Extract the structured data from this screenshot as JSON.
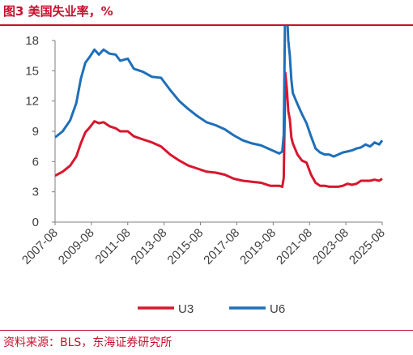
{
  "header": {
    "title": "图3  美国失业率，%"
  },
  "footer": {
    "source": "资料来源：BLS，东海证券研究所"
  },
  "chart_data": {
    "type": "line",
    "title": "美国失业率，%",
    "xlabel": "",
    "ylabel": "",
    "xlim": [
      "2007-08",
      "2025-08"
    ],
    "ylim": [
      0,
      18
    ],
    "yticks": [
      0,
      3,
      6,
      9,
      12,
      15,
      18
    ],
    "xticks": [
      "2007-08",
      "2009-08",
      "2011-08",
      "2013-08",
      "2015-08",
      "2017-08",
      "2019-08",
      "2021-08",
      "2023-08",
      "2025-08"
    ],
    "grid": false,
    "legend": "bottom",
    "series": [
      {
        "name": "U3",
        "color": "#d7172f",
        "points": [
          [
            "2007-08",
            4.6
          ],
          [
            "2008-01",
            5.0
          ],
          [
            "2008-06",
            5.6
          ],
          [
            "2008-10",
            6.5
          ],
          [
            "2009-01",
            7.8
          ],
          [
            "2009-04",
            8.9
          ],
          [
            "2009-07",
            9.4
          ],
          [
            "2009-10",
            10.0
          ],
          [
            "2010-01",
            9.8
          ],
          [
            "2010-04",
            9.9
          ],
          [
            "2010-08",
            9.5
          ],
          [
            "2010-12",
            9.3
          ],
          [
            "2011-03",
            9.0
          ],
          [
            "2011-08",
            9.0
          ],
          [
            "2011-12",
            8.5
          ],
          [
            "2012-06",
            8.2
          ],
          [
            "2012-12",
            7.9
          ],
          [
            "2013-06",
            7.5
          ],
          [
            "2013-12",
            6.7
          ],
          [
            "2014-06",
            6.1
          ],
          [
            "2014-12",
            5.6
          ],
          [
            "2015-06",
            5.3
          ],
          [
            "2015-12",
            5.0
          ],
          [
            "2016-06",
            4.9
          ],
          [
            "2016-12",
            4.7
          ],
          [
            "2017-06",
            4.3
          ],
          [
            "2017-12",
            4.1
          ],
          [
            "2018-06",
            4.0
          ],
          [
            "2018-12",
            3.9
          ],
          [
            "2019-06",
            3.6
          ],
          [
            "2019-12",
            3.6
          ],
          [
            "2020-02",
            3.5
          ],
          [
            "2020-03",
            4.4
          ],
          [
            "2020-04",
            14.8
          ],
          [
            "2020-05",
            13.2
          ],
          [
            "2020-06",
            11.0
          ],
          [
            "2020-07",
            10.2
          ],
          [
            "2020-08",
            8.4
          ],
          [
            "2020-09",
            7.8
          ],
          [
            "2020-12",
            6.7
          ],
          [
            "2021-03",
            6.1
          ],
          [
            "2021-06",
            5.9
          ],
          [
            "2021-09",
            4.7
          ],
          [
            "2021-12",
            3.9
          ],
          [
            "2022-03",
            3.6
          ],
          [
            "2022-06",
            3.6
          ],
          [
            "2022-09",
            3.5
          ],
          [
            "2022-12",
            3.5
          ],
          [
            "2023-03",
            3.5
          ],
          [
            "2023-06",
            3.6
          ],
          [
            "2023-09",
            3.8
          ],
          [
            "2023-12",
            3.7
          ],
          [
            "2024-03",
            3.8
          ],
          [
            "2024-06",
            4.1
          ],
          [
            "2024-09",
            4.1
          ],
          [
            "2024-12",
            4.1
          ],
          [
            "2025-03",
            4.2
          ],
          [
            "2025-06",
            4.1
          ],
          [
            "2025-08",
            4.3
          ]
        ]
      },
      {
        "name": "U6",
        "color": "#1f6fb8",
        "points": [
          [
            "2007-08",
            8.4
          ],
          [
            "2008-01",
            9.0
          ],
          [
            "2008-06",
            10.1
          ],
          [
            "2008-10",
            11.8
          ],
          [
            "2009-01",
            14.2
          ],
          [
            "2009-04",
            15.8
          ],
          [
            "2009-07",
            16.4
          ],
          [
            "2009-10",
            17.1
          ],
          [
            "2010-01",
            16.6
          ],
          [
            "2010-04",
            17.1
          ],
          [
            "2010-08",
            16.7
          ],
          [
            "2010-12",
            16.6
          ],
          [
            "2011-03",
            16.0
          ],
          [
            "2011-08",
            16.2
          ],
          [
            "2011-12",
            15.2
          ],
          [
            "2012-06",
            14.9
          ],
          [
            "2012-12",
            14.4
          ],
          [
            "2013-06",
            14.3
          ],
          [
            "2013-12",
            13.1
          ],
          [
            "2014-06",
            12.0
          ],
          [
            "2014-12",
            11.2
          ],
          [
            "2015-06",
            10.5
          ],
          [
            "2015-12",
            9.9
          ],
          [
            "2016-06",
            9.6
          ],
          [
            "2016-12",
            9.2
          ],
          [
            "2017-06",
            8.6
          ],
          [
            "2017-12",
            8.1
          ],
          [
            "2018-06",
            7.8
          ],
          [
            "2018-12",
            7.6
          ],
          [
            "2019-06",
            7.2
          ],
          [
            "2019-12",
            6.8
          ],
          [
            "2020-02",
            7.0
          ],
          [
            "2020-03",
            8.7
          ],
          [
            "2020-04",
            22.9
          ],
          [
            "2020-05",
            21.2
          ],
          [
            "2020-06",
            18.0
          ],
          [
            "2020-07",
            16.5
          ],
          [
            "2020-08",
            14.1
          ],
          [
            "2020-09",
            12.8
          ],
          [
            "2020-12",
            11.7
          ],
          [
            "2021-03",
            10.7
          ],
          [
            "2021-06",
            9.8
          ],
          [
            "2021-09",
            8.5
          ],
          [
            "2021-12",
            7.3
          ],
          [
            "2022-03",
            6.9
          ],
          [
            "2022-06",
            6.7
          ],
          [
            "2022-09",
            6.7
          ],
          [
            "2022-12",
            6.5
          ],
          [
            "2023-03",
            6.7
          ],
          [
            "2023-06",
            6.9
          ],
          [
            "2023-09",
            7.0
          ],
          [
            "2023-12",
            7.1
          ],
          [
            "2024-03",
            7.3
          ],
          [
            "2024-06",
            7.4
          ],
          [
            "2024-09",
            7.7
          ],
          [
            "2024-12",
            7.5
          ],
          [
            "2025-03",
            7.9
          ],
          [
            "2025-06",
            7.7
          ],
          [
            "2025-08",
            8.1
          ]
        ]
      }
    ]
  }
}
